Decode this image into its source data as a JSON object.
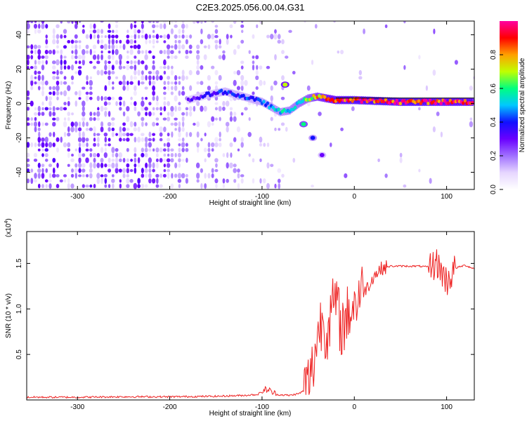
{
  "figure_title": "C2E3.2025.056.00.04.G31",
  "chart_data": [
    {
      "name": "spectrogram",
      "type": "heatmap",
      "xlabel": "Height of straight line (km)",
      "ylabel": "Frequency (Hz)",
      "xlim": [
        -355,
        130
      ],
      "ylim": [
        -50,
        48
      ],
      "xticks": [
        -300,
        -200,
        -100,
        0,
        100
      ],
      "yticks": [
        -40,
        -20,
        0,
        20,
        40
      ],
      "colorbar": {
        "label": "Normalized spectral amplitude",
        "range": [
          0,
          1
        ],
        "ticks": [
          0.0,
          0.2,
          0.4,
          0.6,
          0.8
        ],
        "colors": [
          "#ffffff",
          "#e6d6ff",
          "#a070ff",
          "#6a00ff",
          "#1010ff",
          "#00c8ff",
          "#00ff80",
          "#c0ff00",
          "#ffa000",
          "#ff0000",
          "#ff00a0"
        ]
      },
      "ridge": [
        {
          "x": -180,
          "y": 2,
          "a": 0.3
        },
        {
          "x": -160,
          "y": 5,
          "a": 0.35
        },
        {
          "x": -140,
          "y": 7,
          "a": 0.4
        },
        {
          "x": -120,
          "y": 4,
          "a": 0.4
        },
        {
          "x": -100,
          "y": 1,
          "a": 0.45
        },
        {
          "x": -90,
          "y": -2,
          "a": 0.5
        },
        {
          "x": -80,
          "y": -5,
          "a": 0.5
        },
        {
          "x": -70,
          "y": -4,
          "a": 0.55
        },
        {
          "x": -60,
          "y": 0,
          "a": 0.6
        },
        {
          "x": -50,
          "y": 3,
          "a": 0.65
        },
        {
          "x": -40,
          "y": 4,
          "a": 0.75
        },
        {
          "x": -20,
          "y": 2,
          "a": 0.9
        },
        {
          "x": 0,
          "y": 2,
          "a": 0.95
        },
        {
          "x": 50,
          "y": 1,
          "a": 0.95
        },
        {
          "x": 100,
          "y": 1,
          "a": 0.9
        },
        {
          "x": 128,
          "y": 1,
          "a": 0.9
        }
      ],
      "branches": [
        {
          "x": -75,
          "y": 11,
          "a": 0.7
        },
        {
          "x": -55,
          "y": -12,
          "a": 0.6
        },
        {
          "x": -45,
          "y": -20,
          "a": 0.4
        },
        {
          "x": -35,
          "y": -30,
          "a": 0.3
        }
      ]
    },
    {
      "name": "snr",
      "type": "line",
      "xlabel": "Height of straight line (km)",
      "ylabel": "SNR (10 * v/v)",
      "yscale_label": "(x10",
      "yscale_exp": "4",
      "xlim": [
        -355,
        130
      ],
      "ylim": [
        0,
        1.85
      ],
      "xticks": [
        -300,
        -200,
        -100,
        0,
        100
      ],
      "yticks": [
        0.5,
        1.0,
        1.5
      ],
      "line_color": "#ee2222",
      "x": [
        -355,
        -300,
        -250,
        -200,
        -150,
        -120,
        -105,
        -95,
        -85,
        -70,
        -60,
        -55,
        -50,
        -45,
        -40,
        -35,
        -30,
        -25,
        -20,
        -15,
        -10,
        -5,
        0,
        5,
        10,
        15,
        20,
        30,
        40,
        50,
        60,
        70,
        80,
        90,
        100,
        110,
        120,
        130
      ],
      "y": [
        0.03,
        0.03,
        0.035,
        0.035,
        0.04,
        0.05,
        0.06,
        0.12,
        0.06,
        0.05,
        0.07,
        0.1,
        0.2,
        0.35,
        0.7,
        0.9,
        0.75,
        0.95,
        1.1,
        0.8,
        0.85,
        1.0,
        1.05,
        1.15,
        1.2,
        1.25,
        1.35,
        1.45,
        1.47,
        1.47,
        1.47,
        1.47,
        1.46,
        1.5,
        1.3,
        1.45,
        1.48,
        1.44
      ]
    }
  ]
}
